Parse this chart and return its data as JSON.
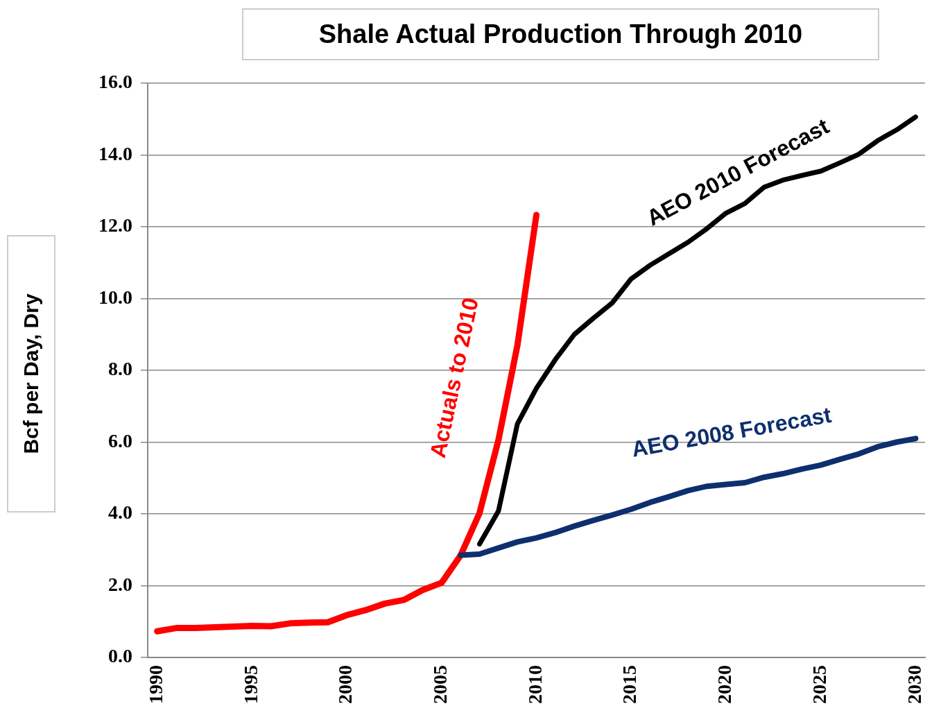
{
  "chart_data": {
    "type": "line",
    "title": "Shale Actual Production Through 2010",
    "ylabel": "Bcf per Day, Dry",
    "xlim": [
      1989.5,
      2030.5
    ],
    "xticks": [
      1990,
      1995,
      2000,
      2005,
      2010,
      2015,
      2020,
      2025,
      2030
    ],
    "ylim": [
      0,
      16
    ],
    "yticks": [
      {
        "value": 0,
        "label": "0.0"
      },
      {
        "value": 2,
        "label": "2.0"
      },
      {
        "value": 4,
        "label": "4.0"
      },
      {
        "value": 6,
        "label": "6.0"
      },
      {
        "value": 8,
        "label": "8.0"
      },
      {
        "value": 10,
        "label": "10.0"
      },
      {
        "value": 12,
        "label": "12.0"
      },
      {
        "value": 14,
        "label": "14.0"
      },
      {
        "value": 16,
        "label": "16.0"
      }
    ],
    "grid": "y",
    "legend": false,
    "marker": "none",
    "line_style": "solid",
    "series": [
      {
        "name": "AEO 2008 Forecast",
        "color": "#0e2f6e",
        "x": [
          2006,
          2007,
          2008,
          2009,
          2010,
          2011,
          2012,
          2013,
          2014,
          2015,
          2016,
          2017,
          2018,
          2019,
          2020,
          2021,
          2022,
          2023,
          2024,
          2025,
          2026,
          2027,
          2028,
          2029,
          2030
        ],
        "values": [
          2.85,
          2.88,
          3.05,
          3.22,
          3.33,
          3.48,
          3.66,
          3.82,
          3.97,
          4.13,
          4.32,
          4.48,
          4.65,
          4.77,
          4.82,
          4.87,
          5.02,
          5.12,
          5.25,
          5.36,
          5.52,
          5.67,
          5.87,
          6.0,
          6.1
        ]
      },
      {
        "name": "AEO 2010 Forecast",
        "color": "#000000",
        "x": [
          2007,
          2008,
          2009,
          2010,
          2011,
          2012,
          2013,
          2014,
          2015,
          2016,
          2017,
          2018,
          2019,
          2020,
          2021,
          2022,
          2023,
          2024,
          2025,
          2026,
          2027,
          2028,
          2029,
          2030
        ],
        "values": [
          3.16,
          4.08,
          6.51,
          7.5,
          8.3,
          9.0,
          9.45,
          9.88,
          10.55,
          10.93,
          11.25,
          11.57,
          11.95,
          12.38,
          12.65,
          13.1,
          13.3,
          13.43,
          13.55,
          13.78,
          14.02,
          14.4,
          14.7,
          15.06
        ]
      },
      {
        "name": "Actuals to 2010",
        "color": "#ff0000",
        "x": [
          1990,
          1991,
          1992,
          1993,
          1994,
          1995,
          1996,
          1997,
          1998,
          1999,
          2000,
          2001,
          2002,
          2003,
          2004,
          2005,
          2006,
          2007,
          2008,
          2009,
          2010
        ],
        "values": [
          0.73,
          0.82,
          0.82,
          0.84,
          0.86,
          0.88,
          0.87,
          0.95,
          0.97,
          0.98,
          1.18,
          1.32,
          1.5,
          1.6,
          1.88,
          2.08,
          2.84,
          4.02,
          6.06,
          8.7,
          12.33
        ]
      }
    ]
  }
}
